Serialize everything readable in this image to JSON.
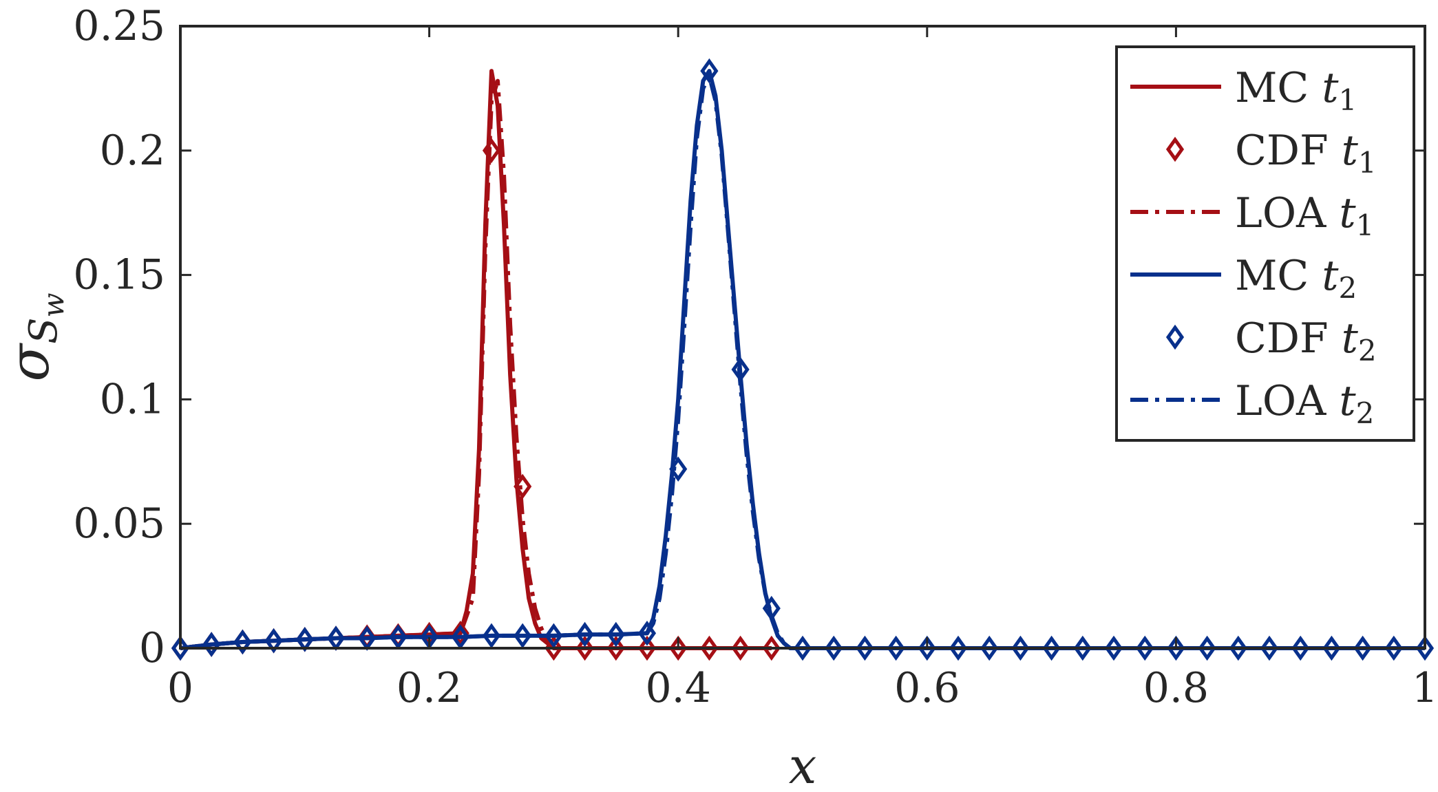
{
  "chart_data": {
    "type": "line",
    "xlabel": "x",
    "ylabel_main": "σ",
    "ylabel_sub": "S",
    "ylabel_subsub": "w",
    "xlim": [
      0,
      1
    ],
    "ylim": [
      0,
      0.25
    ],
    "xticks": [
      0,
      0.2,
      0.4,
      0.6,
      0.8,
      1
    ],
    "xtick_labels": [
      "0",
      "0.2",
      "0.4",
      "0.6",
      "0.8",
      "1"
    ],
    "yticks": [
      0,
      0.05,
      0.1,
      0.15,
      0.2,
      0.25
    ],
    "ytick_labels": [
      "0",
      "0.05",
      "0.1",
      "0.15",
      "0.2",
      "0.25"
    ],
    "grid": false,
    "legend_position": "top-right",
    "colors": {
      "red": "#A50F15",
      "blue": "#08308C",
      "axis": "#262626"
    },
    "series": [
      {
        "name": "MC",
        "sub": "1",
        "key": "mc1",
        "style": "solid",
        "color": "#A50F15",
        "x": [
          0,
          0.025,
          0.05,
          0.075,
          0.1,
          0.125,
          0.15,
          0.175,
          0.2,
          0.225,
          0.23,
          0.235,
          0.24,
          0.245,
          0.25,
          0.255,
          0.26,
          0.265,
          0.27,
          0.275,
          0.28,
          0.285,
          0.29,
          0.3,
          0.35,
          0.4,
          0.45,
          0.475
        ],
        "y": [
          0,
          0.0015,
          0.0025,
          0.003,
          0.0035,
          0.004,
          0.0045,
          0.005,
          0.0055,
          0.006,
          0.015,
          0.03,
          0.08,
          0.17,
          0.232,
          0.218,
          0.17,
          0.11,
          0.068,
          0.04,
          0.02,
          0.01,
          0.004,
          0,
          0,
          0,
          0,
          0
        ]
      },
      {
        "name": "CDF",
        "sub": "1",
        "key": "cdf1",
        "style": "markers",
        "color": "#A50F15",
        "x": [
          0,
          0.025,
          0.05,
          0.075,
          0.1,
          0.125,
          0.15,
          0.175,
          0.2,
          0.225,
          0.25,
          0.275,
          0.3,
          0.325,
          0.35,
          0.375,
          0.4,
          0.425,
          0.45,
          0.475
        ],
        "y": [
          0,
          0.0015,
          0.0025,
          0.003,
          0.0035,
          0.004,
          0.0045,
          0.005,
          0.0055,
          0.006,
          0.2,
          0.065,
          0,
          0,
          0,
          0,
          0,
          0,
          0,
          0
        ]
      },
      {
        "name": "LOA",
        "sub": "1",
        "key": "loa1",
        "style": "dashdot",
        "color": "#A50F15",
        "x": [
          0,
          0.025,
          0.05,
          0.075,
          0.1,
          0.125,
          0.15,
          0.175,
          0.2,
          0.225,
          0.235,
          0.24,
          0.245,
          0.25,
          0.255,
          0.26,
          0.265,
          0.27,
          0.275,
          0.28,
          0.285,
          0.29,
          0.295,
          0.3,
          0.35,
          0.4,
          0.45,
          0.475
        ],
        "y": [
          0,
          0.0015,
          0.0025,
          0.003,
          0.0035,
          0.004,
          0.0045,
          0.005,
          0.0055,
          0.006,
          0.02,
          0.07,
          0.16,
          0.22,
          0.228,
          0.19,
          0.13,
          0.085,
          0.052,
          0.03,
          0.016,
          0.008,
          0.003,
          0,
          0,
          0,
          0,
          0
        ]
      },
      {
        "name": "MC",
        "sub": "2",
        "key": "mc2",
        "style": "solid",
        "color": "#08308C",
        "x": [
          0,
          0.025,
          0.05,
          0.075,
          0.1,
          0.125,
          0.15,
          0.175,
          0.2,
          0.225,
          0.25,
          0.275,
          0.3,
          0.325,
          0.35,
          0.375,
          0.38,
          0.385,
          0.39,
          0.395,
          0.4,
          0.405,
          0.41,
          0.415,
          0.42,
          0.425,
          0.43,
          0.435,
          0.44,
          0.445,
          0.45,
          0.455,
          0.46,
          0.465,
          0.47,
          0.475,
          0.48,
          0.485,
          0.49,
          0.5,
          0.525,
          0.55,
          0.575,
          0.6,
          0.65,
          0.7,
          0.75,
          0.8,
          0.85,
          0.9,
          0.95,
          1
        ],
        "y": [
          0,
          0.0015,
          0.0025,
          0.003,
          0.0035,
          0.004,
          0.004,
          0.0045,
          0.0045,
          0.0045,
          0.005,
          0.005,
          0.005,
          0.0055,
          0.0055,
          0.006,
          0.012,
          0.025,
          0.045,
          0.07,
          0.1,
          0.14,
          0.18,
          0.21,
          0.228,
          0.232,
          0.222,
          0.2,
          0.17,
          0.14,
          0.11,
          0.082,
          0.058,
          0.038,
          0.022,
          0.012,
          0.005,
          0.002,
          0,
          0,
          0,
          0,
          0,
          0,
          0,
          0,
          0,
          0,
          0,
          0,
          0,
          0
        ]
      },
      {
        "name": "CDF",
        "sub": "2",
        "key": "cdf2",
        "style": "markers",
        "color": "#08308C",
        "x": [
          0,
          0.025,
          0.05,
          0.075,
          0.1,
          0.125,
          0.15,
          0.175,
          0.2,
          0.225,
          0.25,
          0.275,
          0.3,
          0.325,
          0.35,
          0.375,
          0.4,
          0.425,
          0.45,
          0.475,
          0.5,
          0.525,
          0.55,
          0.575,
          0.6,
          0.625,
          0.65,
          0.675,
          0.7,
          0.725,
          0.75,
          0.775,
          0.8,
          0.825,
          0.85,
          0.875,
          0.9,
          0.925,
          0.95,
          0.975,
          1
        ],
        "y": [
          0,
          0.0015,
          0.0025,
          0.003,
          0.0035,
          0.004,
          0.004,
          0.0045,
          0.0045,
          0.0045,
          0.005,
          0.005,
          0.005,
          0.0055,
          0.0055,
          0.006,
          0.072,
          0.232,
          0.112,
          0.016,
          0,
          0,
          0,
          0,
          0,
          0,
          0,
          0,
          0,
          0,
          0,
          0,
          0,
          0,
          0,
          0,
          0,
          0,
          0,
          0,
          0
        ]
      },
      {
        "name": "LOA",
        "sub": "2",
        "key": "loa2",
        "style": "dashdot",
        "color": "#08308C",
        "x": [
          0,
          0.025,
          0.05,
          0.075,
          0.1,
          0.125,
          0.15,
          0.175,
          0.2,
          0.225,
          0.25,
          0.275,
          0.3,
          0.325,
          0.35,
          0.375,
          0.38,
          0.385,
          0.39,
          0.395,
          0.4,
          0.405,
          0.41,
          0.415,
          0.42,
          0.425,
          0.43,
          0.435,
          0.44,
          0.445,
          0.45,
          0.455,
          0.46,
          0.465,
          0.47,
          0.475,
          0.48,
          0.485,
          0.49,
          0.5,
          0.55,
          0.6,
          0.7,
          0.8,
          0.9,
          1
        ],
        "y": [
          0,
          0.0015,
          0.0025,
          0.003,
          0.0035,
          0.004,
          0.004,
          0.0045,
          0.0045,
          0.0045,
          0.005,
          0.005,
          0.005,
          0.0055,
          0.0055,
          0.006,
          0.01,
          0.02,
          0.038,
          0.062,
          0.092,
          0.13,
          0.17,
          0.205,
          0.225,
          0.23,
          0.22,
          0.198,
          0.168,
          0.137,
          0.106,
          0.078,
          0.055,
          0.036,
          0.022,
          0.013,
          0.006,
          0.002,
          0,
          0,
          0,
          0,
          0,
          0,
          0,
          0
        ]
      }
    ]
  }
}
